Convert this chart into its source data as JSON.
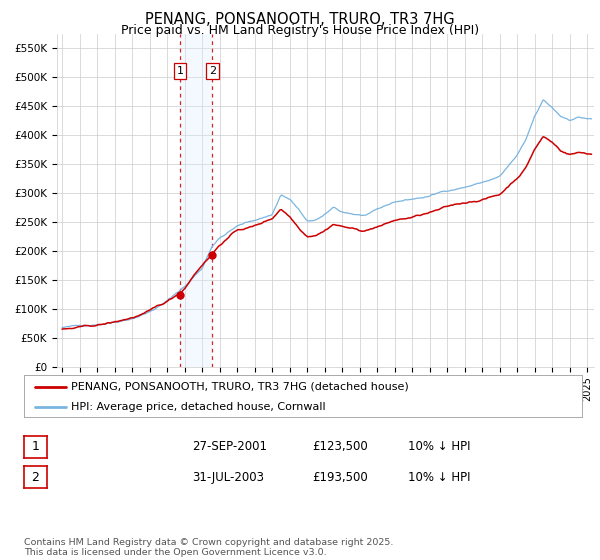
{
  "title": "PENANG, PONSANOOTH, TRURO, TR3 7HG",
  "subtitle": "Price paid vs. HM Land Registry's House Price Index (HPI)",
  "ylim": [
    0,
    575000
  ],
  "yticks": [
    0,
    50000,
    100000,
    150000,
    200000,
    250000,
    300000,
    350000,
    400000,
    450000,
    500000,
    550000
  ],
  "ytick_labels": [
    "£0",
    "£50K",
    "£100K",
    "£150K",
    "£200K",
    "£250K",
    "£300K",
    "£350K",
    "£400K",
    "£450K",
    "£500K",
    "£550K"
  ],
  "hpi_color": "#7ab5e0",
  "price_color": "#cc0000",
  "transaction1_date": 2001.74,
  "transaction1_price": 123500,
  "transaction2_date": 2003.58,
  "transaction2_price": 193500,
  "vline_color": "#cc0000",
  "highlight_color": "#ddeeff",
  "legend_label_price": "PENANG, PONSANOOTH, TRURO, TR3 7HG (detached house)",
  "legend_label_hpi": "HPI: Average price, detached house, Cornwall",
  "table_row1": [
    "1",
    "27-SEP-2001",
    "£123,500",
    "10% ↓ HPI"
  ],
  "table_row2": [
    "2",
    "31-JUL-2003",
    "£193,500",
    "10% ↓ HPI"
  ],
  "footer": "Contains HM Land Registry data © Crown copyright and database right 2025.\nThis data is licensed under the Open Government Licence v3.0.",
  "background_color": "#ffffff",
  "grid_color": "#cccccc",
  "title_fontsize": 10.5,
  "subtitle_fontsize": 9
}
